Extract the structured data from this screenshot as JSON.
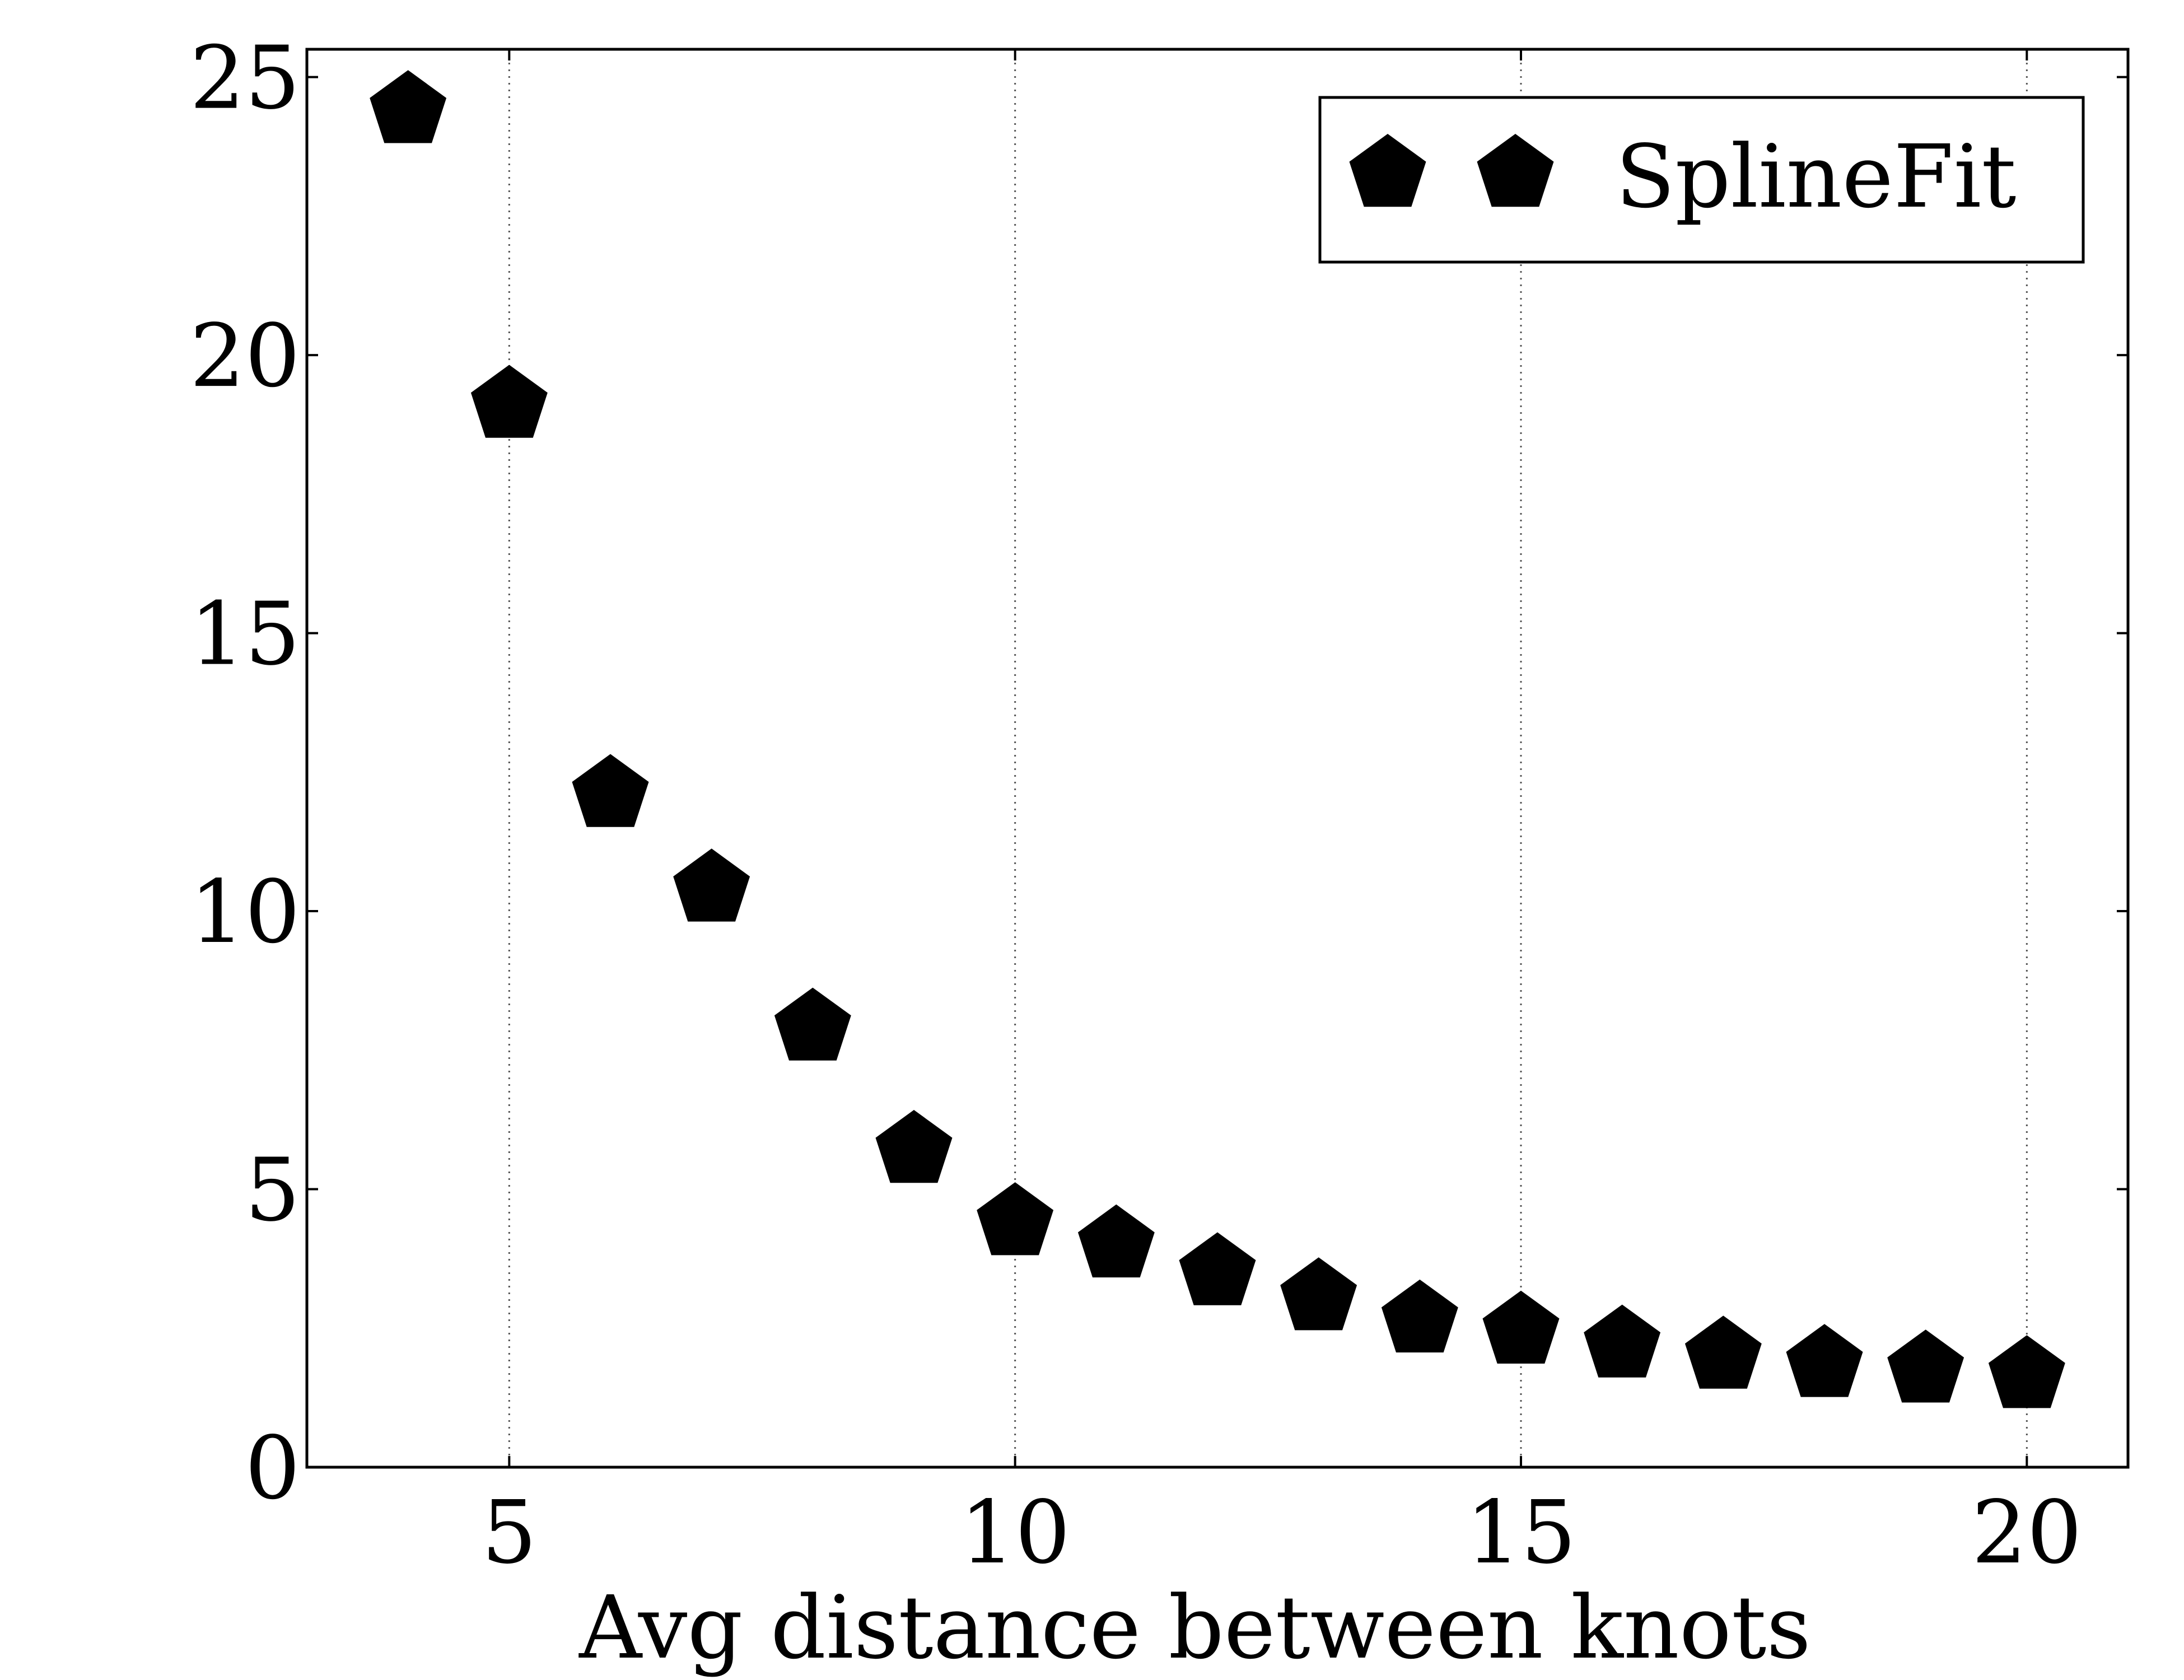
{
  "chart_data": {
    "type": "scatter",
    "title": "",
    "xlabel": "Avg distance between knots",
    "ylabel": "",
    "xlim": [
      3,
      21
    ],
    "ylim": [
      0,
      25.5
    ],
    "xticks": [
      5,
      10,
      15,
      20
    ],
    "yticks": [
      0,
      5,
      10,
      15,
      20,
      25
    ],
    "grid": "vertical dotted at x ticks",
    "legend": "top-right",
    "marker": "pentagon",
    "color": "#000000",
    "series": [
      {
        "name": "SplineFit",
        "x": [
          4,
          5,
          6,
          7,
          8,
          9,
          10,
          11,
          12,
          13,
          14,
          15,
          16,
          17,
          18,
          19,
          20
        ],
        "y": [
          24.4,
          19.1,
          12.1,
          10.4,
          7.9,
          5.7,
          4.4,
          4.0,
          3.5,
          3.05,
          2.65,
          2.45,
          2.2,
          2.0,
          1.85,
          1.75,
          1.65
        ]
      }
    ]
  }
}
